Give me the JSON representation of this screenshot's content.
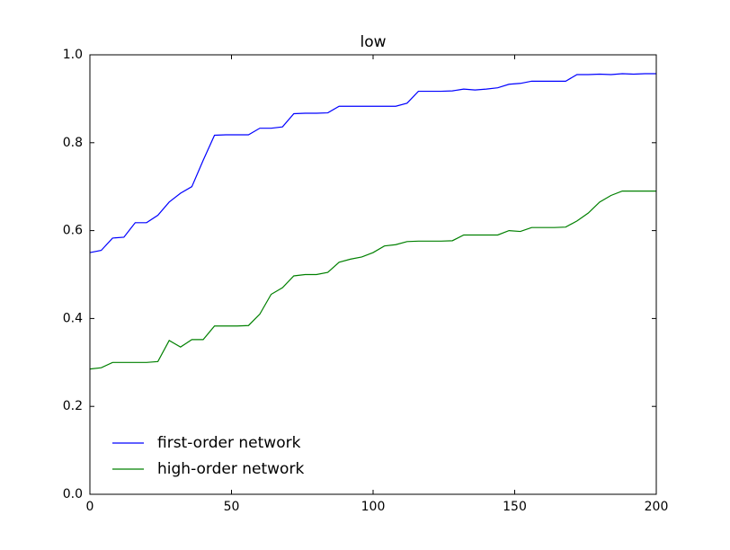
{
  "chart_data": {
    "type": "line",
    "title": "low",
    "x": [
      0,
      4,
      8,
      12,
      16,
      20,
      24,
      28,
      32,
      36,
      40,
      44,
      48,
      52,
      56,
      60,
      64,
      68,
      72,
      76,
      80,
      84,
      88,
      92,
      96,
      100,
      104,
      108,
      112,
      116,
      120,
      124,
      128,
      132,
      136,
      140,
      144,
      148,
      152,
      156,
      160,
      164,
      168,
      172,
      176,
      180,
      184,
      188,
      192,
      196,
      200
    ],
    "series": [
      {
        "name": "first-order network",
        "color": "#0000ff",
        "values": [
          0.55,
          0.555,
          0.583,
          0.585,
          0.618,
          0.618,
          0.635,
          0.665,
          0.685,
          0.7,
          0.76,
          0.817,
          0.818,
          0.818,
          0.818,
          0.833,
          0.833,
          0.836,
          0.866,
          0.867,
          0.867,
          0.868,
          0.883,
          0.883,
          0.883,
          0.883,
          0.883,
          0.883,
          0.89,
          0.917,
          0.917,
          0.917,
          0.918,
          0.922,
          0.92,
          0.922,
          0.925,
          0.933,
          0.935,
          0.94,
          0.94,
          0.94,
          0.94,
          0.955,
          0.955,
          0.956,
          0.955,
          0.957,
          0.956,
          0.957,
          0.957
        ]
      },
      {
        "name": "high-order network",
        "color": "#008000",
        "values": [
          0.285,
          0.288,
          0.3,
          0.3,
          0.3,
          0.3,
          0.302,
          0.35,
          0.335,
          0.352,
          0.352,
          0.383,
          0.383,
          0.383,
          0.384,
          0.41,
          0.455,
          0.47,
          0.497,
          0.5,
          0.5,
          0.505,
          0.528,
          0.535,
          0.54,
          0.55,
          0.565,
          0.568,
          0.575,
          0.576,
          0.576,
          0.576,
          0.577,
          0.59,
          0.59,
          0.59,
          0.59,
          0.6,
          0.598,
          0.607,
          0.607,
          0.607,
          0.608,
          0.622,
          0.64,
          0.665,
          0.68,
          0.69,
          0.69,
          0.69,
          0.69
        ]
      }
    ],
    "xlim": [
      0,
      200
    ],
    "xticks": [
      0,
      50,
      100,
      150,
      200
    ],
    "ylim": [
      0,
      1
    ],
    "yticks": [
      {
        "value": 0,
        "label": "0.0"
      },
      0.2,
      0.4,
      0.6,
      0.8,
      {
        "value": 1,
        "label": "1.0"
      }
    ],
    "legend": "lower left"
  }
}
